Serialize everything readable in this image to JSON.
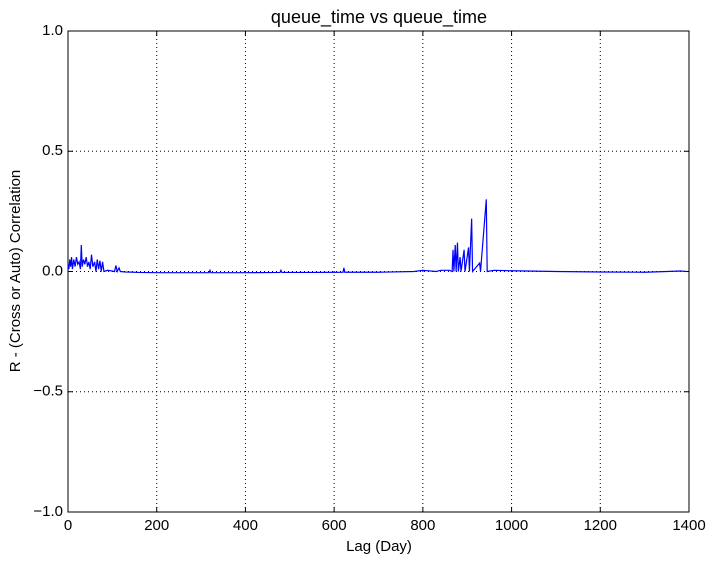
{
  "chart_data": {
    "type": "line",
    "title": "queue_time vs queue_time",
    "x_label": "Lag (Day)",
    "y_label": "R - (Cross or Auto) Correlation",
    "x": [
      0,
      2,
      4,
      6,
      8,
      10,
      13,
      16,
      19,
      22,
      25,
      28,
      30,
      32,
      35,
      38,
      41,
      44,
      47,
      50,
      53,
      56,
      60,
      63,
      66,
      69,
      72,
      75,
      78,
      81,
      90,
      105,
      108,
      111,
      115,
      118,
      130,
      160,
      200,
      250,
      318,
      320,
      322,
      400,
      478,
      480,
      482,
      550,
      620,
      622,
      624,
      700,
      780,
      800,
      830,
      840,
      860,
      866,
      868,
      870,
      873,
      875,
      878,
      880,
      884,
      886,
      893,
      895,
      903,
      905,
      910,
      912,
      928,
      930,
      943,
      945,
      960,
      1000,
      1100,
      1200,
      1300,
      1350,
      1380,
      1395
    ],
    "series": [
      {
        "name": "queue_time",
        "color": "#0000ff",
        "values": [
          0.03,
          0.01,
          0.05,
          0.02,
          0.06,
          0.01,
          0.05,
          0.02,
          0.06,
          0.03,
          0.04,
          0.01,
          0.11,
          0.02,
          0.05,
          0.03,
          0.06,
          0.02,
          0.04,
          0.01,
          0.07,
          0.02,
          0.04,
          0.0,
          0.05,
          0.01,
          0.045,
          0.0,
          0.04,
          0.0,
          0.005,
          0.0,
          0.025,
          0.0,
          0.015,
          0.0,
          -0.002,
          -0.004,
          -0.005,
          -0.005,
          -0.005,
          0.005,
          -0.005,
          -0.005,
          -0.004,
          0.005,
          -0.004,
          -0.004,
          -0.003,
          0.015,
          -0.003,
          -0.003,
          0.0,
          0.005,
          0.0,
          0.005,
          0.005,
          0.0,
          0.09,
          0.0,
          0.11,
          0.0,
          0.12,
          0.0,
          0.06,
          0.0,
          0.09,
          0.0,
          0.1,
          0.0,
          0.22,
          0.0,
          0.035,
          0.0,
          0.3,
          0.0,
          0.005,
          0.003,
          0.0,
          -0.002,
          -0.003,
          0.0,
          0.002,
          0.0
        ]
      }
    ],
    "xlim": [
      0,
      1400
    ],
    "xticks": [
      0,
      200,
      400,
      600,
      800,
      1000,
      1200,
      1400
    ],
    "ylim": [
      -1,
      1
    ],
    "yticks": [
      {
        "value": -1,
        "label": "−1.0"
      },
      {
        "value": -0.5,
        "label": "−0.5"
      },
      {
        "value": 0,
        "label": "0.0"
      },
      {
        "value": 0.5,
        "label": "0.5"
      },
      {
        "value": 1,
        "label": "1.0"
      }
    ],
    "grid": true
  }
}
